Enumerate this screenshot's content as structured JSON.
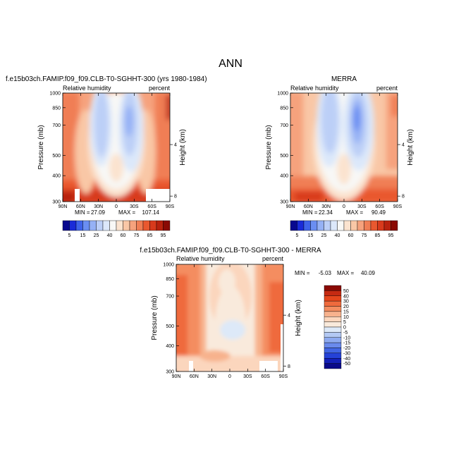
{
  "page_title": "ANN",
  "chart_data": [
    {
      "type": "heatmap",
      "title": "f.e15b03ch.FAMIP.f09_f09.CLB-T0-SGHHT-300 (yrs 1980-1984)",
      "left_label": "Relative humidity",
      "right_label": "percent",
      "xlabel": "",
      "ylabel": "Pressure (mb)",
      "y2label": "Height (km)",
      "x_ticks": [
        "90N",
        "60N",
        "30N",
        "0",
        "30S",
        "60S",
        "90S"
      ],
      "y_ticks": [
        "300",
        "400",
        "500",
        "700",
        "850",
        "1000"
      ],
      "y2_ticks": [
        "8",
        "4"
      ],
      "xlim": [
        90,
        -90
      ],
      "ylim": [
        1000,
        300
      ],
      "y_scale": "log",
      "stats": {
        "min_label": "MIN =",
        "min": "27.09",
        "max_label": "MAX =",
        "max": "107.14"
      },
      "colorbar_labels": [
        "5",
        "15",
        "25",
        "40",
        "60",
        "75",
        "85",
        "95"
      ]
    },
    {
      "type": "heatmap",
      "title": "MERRA",
      "left_label": "Relative humidity",
      "right_label": "percent",
      "xlabel": "",
      "ylabel": "Pressure (mb)",
      "y2label": "Height (km)",
      "x_ticks": [
        "90N",
        "60N",
        "30N",
        "0",
        "30S",
        "60S",
        "90S"
      ],
      "y_ticks": [
        "300",
        "400",
        "500",
        "700",
        "850",
        "1000"
      ],
      "y2_ticks": [
        "8",
        "4"
      ],
      "xlim": [
        90,
        -90
      ],
      "ylim": [
        1000,
        300
      ],
      "y_scale": "log",
      "stats": {
        "min_label": "MIN =",
        "min": "22.34",
        "max_label": "MAX =",
        "max": "90.49"
      },
      "colorbar_labels": [
        "5",
        "15",
        "25",
        "40",
        "60",
        "75",
        "85",
        "95"
      ]
    },
    {
      "type": "heatmap",
      "title": "f.e15b03ch.FAMIP.f09_f09.CLB-T0-SGHHT-300 - MERRA",
      "left_label": "Relative humidity",
      "right_label": "percent",
      "xlabel": "",
      "ylabel": "Pressure (mb)",
      "y2label": "Height (km)",
      "x_ticks": [
        "90N",
        "60N",
        "30N",
        "0",
        "30S",
        "60S",
        "90S"
      ],
      "y_ticks": [
        "300",
        "400",
        "500",
        "700",
        "850",
        "1000"
      ],
      "y2_ticks": [
        "8",
        "4"
      ],
      "xlim": [
        90,
        -90
      ],
      "ylim": [
        1000,
        300
      ],
      "y_scale": "log",
      "stats": {
        "min_label": "MIN =",
        "min": "-5.03",
        "max_label": "MAX =",
        "max": "40.09"
      },
      "colorbar_labels": [
        "50",
        "40",
        "30",
        "20",
        "15",
        "10",
        "5",
        "0",
        "-5",
        "-10",
        "-15",
        "-20",
        "-30",
        "-40",
        "-50"
      ]
    }
  ],
  "colors": {
    "abs_scale": [
      "#08088f",
      "#1a2bd8",
      "#3f63ea",
      "#6a8ef2",
      "#95b1f5",
      "#bccff7",
      "#dce8fa",
      "#f8f8f6",
      "#fbe3cf",
      "#f9c7a6",
      "#f6a27d",
      "#f07e55",
      "#e9582f",
      "#d83a1c",
      "#b8220e",
      "#8a0a04"
    ],
    "diff_scale": [
      "#8a0a04",
      "#c62a12",
      "#e5461c",
      "#ef6a3d",
      "#f48d60",
      "#f7b28d",
      "#fbd6bd",
      "#f9eadc",
      "#dde9f8",
      "#b3c9f4",
      "#8eaaf0",
      "#6a8aec",
      "#4266e4",
      "#2542d8",
      "#1420b8",
      "#0a0a8a"
    ]
  }
}
